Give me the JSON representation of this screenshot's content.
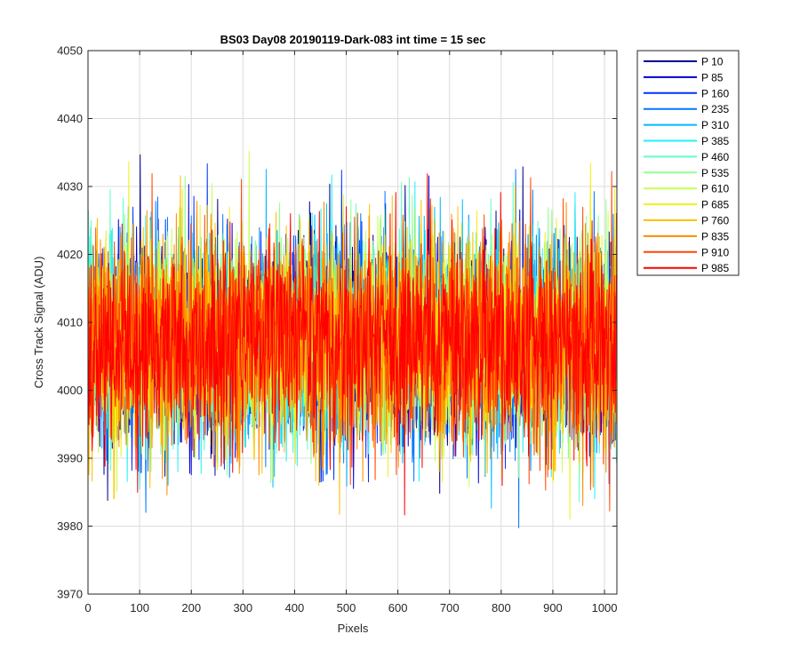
{
  "chart_data": {
    "type": "line",
    "title": "BS03 Day08 20190119-Dark-083 int time = 15 sec",
    "xlabel": "Pixels",
    "ylabel": "Cross Track Signal (ADU)",
    "xlim": [
      0,
      1024
    ],
    "ylim": [
      3970,
      4050
    ],
    "xticks": [
      "0",
      "100",
      "200",
      "300",
      "400",
      "500",
      "600",
      "700",
      "800",
      "900",
      "1000"
    ],
    "yticks": [
      "3970",
      "3980",
      "3990",
      "4000",
      "4010",
      "4020",
      "4030",
      "4040",
      "4050"
    ],
    "grid": true,
    "legend_position": "outside-top-right",
    "noise": {
      "points_per_series": 1024,
      "mean": 4007,
      "std": 7.5,
      "note_min": 3975,
      "note_max": 4045
    },
    "series": [
      {
        "name": "P 10",
        "color": "#00008f"
      },
      {
        "name": "P 85",
        "color": "#0000d4"
      },
      {
        "name": "P 160",
        "color": "#0032ff"
      },
      {
        "name": "P 235",
        "color": "#0078ff"
      },
      {
        "name": "P 310",
        "color": "#00bbff"
      },
      {
        "name": "P 385",
        "color": "#22f0f5"
      },
      {
        "name": "P 460",
        "color": "#5fffc8"
      },
      {
        "name": "P 535",
        "color": "#8fff8f"
      },
      {
        "name": "P 610",
        "color": "#c8ff50"
      },
      {
        "name": "P 685",
        "color": "#f0f020"
      },
      {
        "name": "P 760",
        "color": "#ffc000"
      },
      {
        "name": "P 835",
        "color": "#ff8c00"
      },
      {
        "name": "P 910",
        "color": "#ff4600"
      },
      {
        "name": "P 985",
        "color": "#ff0000"
      }
    ]
  }
}
